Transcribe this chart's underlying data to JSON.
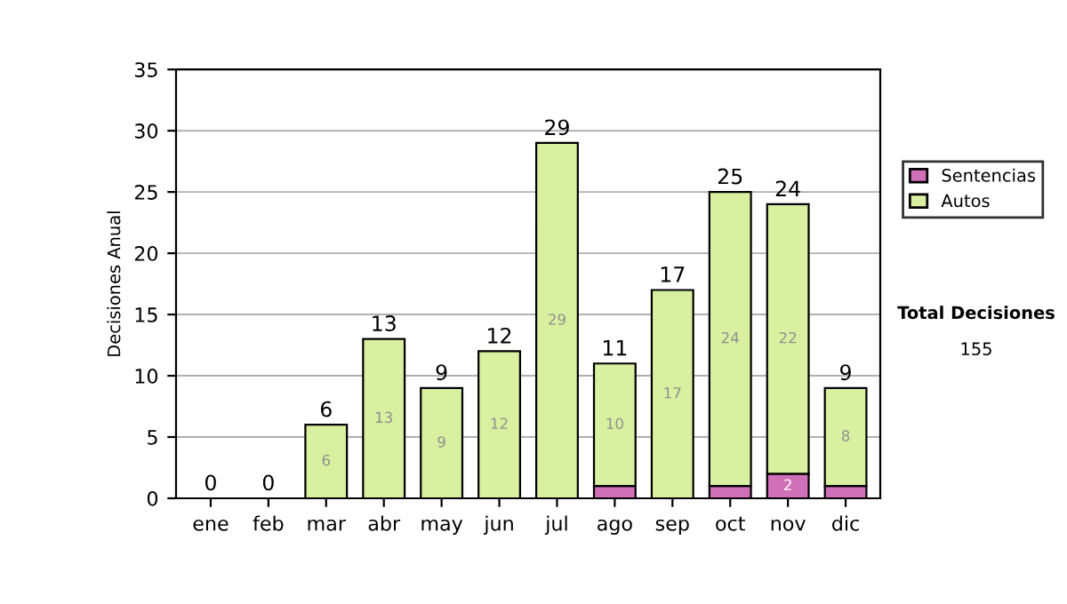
{
  "chart_data": {
    "type": "bar",
    "stacked": true,
    "ylabel": "Decisiones Anual",
    "categories": [
      "ene",
      "feb",
      "mar",
      "abr",
      "may",
      "jun",
      "jul",
      "ago",
      "sep",
      "oct",
      "nov",
      "dic"
    ],
    "series": [
      {
        "name": "Sentencias",
        "color": "#d070b8",
        "values": [
          0,
          0,
          0,
          0,
          0,
          0,
          0,
          1,
          0,
          1,
          2,
          1
        ],
        "value_labels": [
          null,
          null,
          null,
          null,
          null,
          null,
          null,
          null,
          null,
          null,
          "2",
          null
        ]
      },
      {
        "name": "Autos",
        "color": "#d8f0a0",
        "values": [
          0,
          0,
          6,
          13,
          9,
          12,
          29,
          10,
          17,
          24,
          22,
          8
        ],
        "value_labels": [
          null,
          null,
          "6",
          "13",
          "9",
          "12",
          "29",
          "10",
          "17",
          "24",
          "22",
          "8"
        ]
      }
    ],
    "totals": [
      "0",
      "0",
      "6",
      "13",
      "9",
      "12",
      "29",
      "11",
      "17",
      "25",
      "24",
      "9"
    ],
    "ylim": [
      0,
      35
    ],
    "yticks": [
      0,
      5,
      10,
      15,
      20,
      25,
      30,
      35
    ],
    "grid": "y",
    "legend": "right",
    "annotations": [
      "Total Decisiones",
      "155"
    ]
  }
}
